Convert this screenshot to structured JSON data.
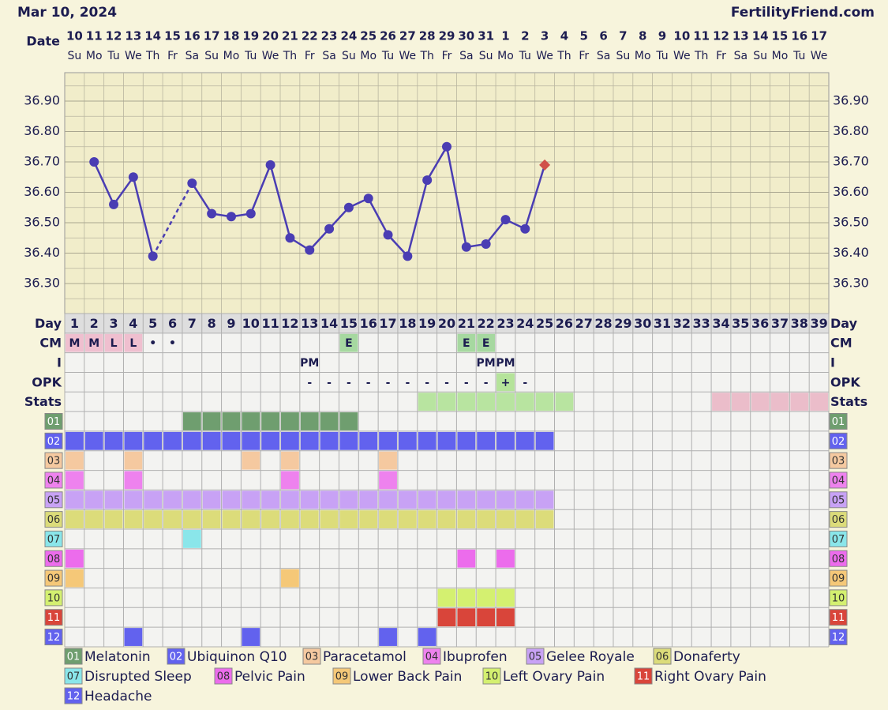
{
  "header": {
    "date": "Mar 10, 2024",
    "site": "FertilityFriend.com"
  },
  "chart_data": {
    "type": "line",
    "labels": {
      "date": "Date",
      "day": "Day",
      "cm": "CM",
      "i": "I",
      "opk": "OPK",
      "stats": "Stats"
    },
    "dates": [
      10,
      11,
      12,
      13,
      14,
      15,
      16,
      17,
      18,
      19,
      20,
      21,
      22,
      23,
      24,
      25,
      26,
      27,
      28,
      29,
      30,
      31,
      1,
      2,
      3,
      4,
      5,
      6,
      7,
      8,
      9,
      10,
      11,
      12,
      13,
      14,
      15,
      16,
      17
    ],
    "weekdays": [
      "Su",
      "Mo",
      "Tu",
      "We",
      "Th",
      "Fr",
      "Sa",
      "Su",
      "Mo",
      "Tu",
      "We",
      "Th",
      "Fr",
      "Sa",
      "Su",
      "Mo",
      "Tu",
      "We",
      "Th",
      "Fr",
      "Sa",
      "Su",
      "Mo",
      "Tu",
      "We",
      "Th",
      "Fr",
      "Sa",
      "Su",
      "Mo",
      "Tu",
      "We",
      "Th",
      "Fr",
      "Sa",
      "Su",
      "Mo",
      "Tu",
      "We"
    ],
    "x": [
      1,
      2,
      3,
      4,
      5,
      6,
      7,
      8,
      9,
      10,
      11,
      12,
      13,
      14,
      15,
      16,
      17,
      18,
      19,
      20,
      21,
      22,
      23,
      24,
      25,
      26,
      27,
      28,
      29,
      30,
      31,
      32,
      33,
      34,
      35,
      36,
      37,
      38,
      39
    ],
    "ylim": [
      36.2,
      37.0
    ],
    "yticks": [
      {
        "value": 36.3,
        "label": "36.30"
      },
      {
        "value": 36.4,
        "label": "36.40"
      },
      {
        "value": 36.5,
        "label": "36.50"
      },
      {
        "value": 36.6,
        "label": "36.60"
      },
      {
        "value": 36.7,
        "label": "36.70"
      },
      {
        "value": 36.8,
        "label": "36.80"
      },
      {
        "value": 36.9,
        "label": "36.90"
      }
    ],
    "grid": true,
    "series": [
      {
        "color": "#4a3db3",
        "marker": "circle",
        "values": [
          null,
          36.7,
          36.56,
          36.65,
          36.39,
          null,
          36.63,
          36.53,
          36.52,
          36.53,
          36.69,
          36.45,
          36.41,
          36.48,
          36.55,
          36.58,
          36.46,
          36.39,
          36.64,
          36.75,
          36.42,
          36.43,
          36.51,
          36.48,
          null,
          null,
          null,
          null,
          null,
          null,
          null,
          null,
          null,
          null,
          null,
          null,
          null,
          null,
          null
        ]
      },
      {
        "color": "#d0504a",
        "marker": "diamond",
        "values": [
          null,
          null,
          null,
          null,
          null,
          null,
          null,
          null,
          null,
          null,
          null,
          null,
          null,
          null,
          null,
          null,
          null,
          null,
          null,
          null,
          null,
          null,
          null,
          null,
          36.69,
          null,
          null,
          null,
          null,
          null,
          null,
          null,
          null,
          null,
          null,
          null,
          null,
          null,
          null
        ]
      }
    ],
    "cm": [
      "M",
      "M",
      "L",
      "L",
      "•",
      "•",
      null,
      null,
      null,
      null,
      null,
      null,
      null,
      null,
      "E",
      null,
      null,
      null,
      null,
      null,
      "E",
      "E",
      null,
      null,
      null,
      null,
      null,
      null,
      null,
      null,
      null,
      null,
      null,
      null,
      null,
      null,
      null,
      null,
      null
    ],
    "cm_colors": {
      "M": "#efbfcf",
      "L": "#efbfcf",
      "E": "#a6d8a0"
    },
    "intercourse": [
      null,
      null,
      null,
      null,
      null,
      null,
      null,
      null,
      null,
      null,
      null,
      null,
      "PM",
      null,
      null,
      null,
      null,
      null,
      null,
      null,
      null,
      "PM",
      "PM",
      null,
      null,
      null,
      null,
      null,
      null,
      null,
      null,
      null,
      null,
      null,
      null,
      null,
      null,
      null,
      null
    ],
    "opk": [
      null,
      null,
      null,
      null,
      null,
      null,
      null,
      null,
      null,
      null,
      null,
      null,
      "-",
      "-",
      "-",
      "-",
      "-",
      "-",
      "-",
      "-",
      "-",
      "-",
      "+",
      "-",
      null,
      null,
      null,
      null,
      null,
      null,
      null,
      null,
      null,
      null,
      null,
      null,
      null,
      null,
      null
    ],
    "opk_colors": {
      "+": "#b5e39a"
    },
    "stats": [
      null,
      null,
      null,
      null,
      null,
      null,
      null,
      null,
      null,
      null,
      null,
      null,
      null,
      null,
      null,
      null,
      null,
      null,
      "#b8e4a0",
      "#b8e4a0",
      "#b8e4a0",
      "#b8e4a0",
      "#b8e4a0",
      "#b8e4a0",
      "#b8e4a0",
      "#b8e4a0",
      null,
      null,
      null,
      null,
      null,
      null,
      null,
      "#ebbdca",
      "#ebbdca",
      "#ebbdca",
      "#ebbdca",
      "#ebbdca",
      "#ebbdca"
    ],
    "rows": [
      {
        "code": "01",
        "label": "Melatonin",
        "color": "#6f9e6f",
        "days": [
          7,
          8,
          9,
          10,
          11,
          12,
          13,
          14,
          15
        ]
      },
      {
        "code": "02",
        "label": "Ubiquinon Q10",
        "color": "#6262ee",
        "days": [
          1,
          2,
          3,
          4,
          5,
          6,
          7,
          8,
          9,
          10,
          11,
          12,
          13,
          14,
          15,
          16,
          17,
          18,
          19,
          20,
          21,
          22,
          23,
          24,
          25
        ]
      },
      {
        "code": "03",
        "label": "Paracetamol",
        "color": "#f5c9a0",
        "days": [
          1,
          4,
          10,
          12,
          17
        ]
      },
      {
        "code": "04",
        "label": "Ibuprofen",
        "color": "#ee82ee",
        "days": [
          1,
          4,
          12,
          17
        ]
      },
      {
        "code": "05",
        "label": "Gelee Royale",
        "color": "#c8a2f5",
        "days": [
          1,
          2,
          3,
          4,
          5,
          6,
          7,
          8,
          9,
          10,
          11,
          12,
          13,
          14,
          15,
          16,
          17,
          18,
          19,
          20,
          21,
          22,
          23,
          24,
          25
        ]
      },
      {
        "code": "06",
        "label": "Donaferty",
        "color": "#dcdc7a",
        "days": [
          1,
          2,
          3,
          4,
          5,
          6,
          7,
          8,
          9,
          10,
          11,
          12,
          13,
          14,
          15,
          16,
          17,
          18,
          19,
          20,
          21,
          22,
          23,
          24,
          25
        ]
      },
      {
        "code": "07",
        "label": "Disrupted Sleep",
        "color": "#8ae6ea",
        "days": [
          7
        ]
      },
      {
        "code": "08",
        "label": "Pelvic Pain",
        "color": "#ec6cec",
        "days": [
          1,
          21,
          23
        ]
      },
      {
        "code": "09",
        "label": "Lower Back Pain",
        "color": "#f5c878",
        "days": [
          1,
          12
        ]
      },
      {
        "code": "10",
        "label": "Left Ovary Pain",
        "color": "#d4f070",
        "days": [
          20,
          21,
          22,
          23
        ]
      },
      {
        "code": "11",
        "label": "Right Ovary Pain",
        "color": "#d9453a",
        "days": [
          20,
          21,
          22,
          23
        ]
      },
      {
        "code": "12",
        "label": "Headache",
        "color": "#6262ee",
        "days": [
          4,
          10,
          17,
          19
        ]
      }
    ]
  }
}
